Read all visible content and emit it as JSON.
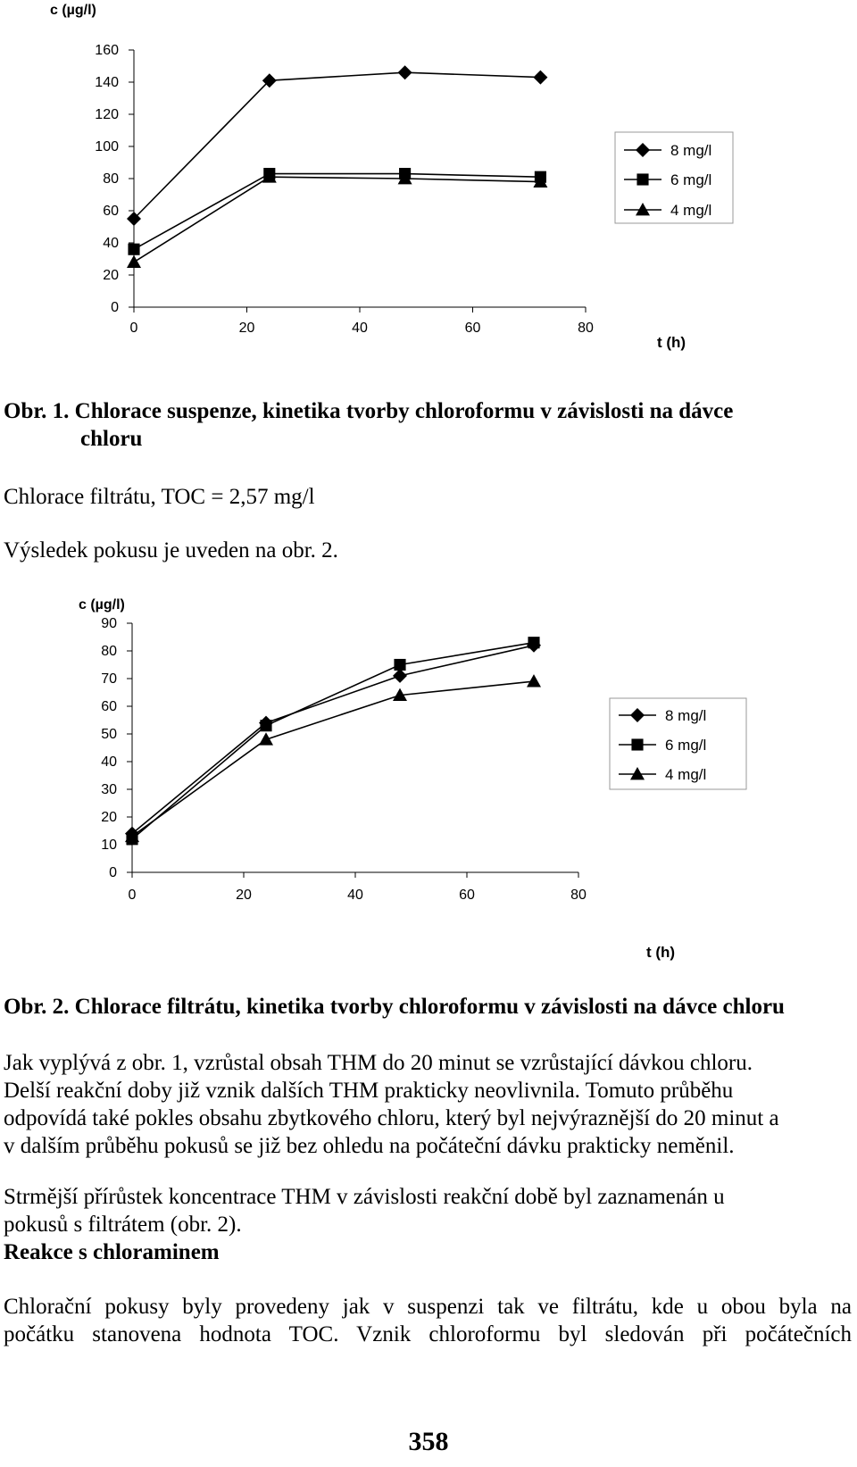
{
  "chart_data": [
    {
      "type": "line",
      "title": "",
      "ylabel": "c (µg/l)",
      "xlabel": "t (h)",
      "xlim": [
        0,
        80
      ],
      "ylim": [
        0,
        160
      ],
      "xticks": [
        0,
        20,
        40,
        60,
        80
      ],
      "yticks": [
        0,
        20,
        40,
        60,
        80,
        100,
        120,
        140,
        160
      ],
      "legend_position": "right",
      "series": [
        {
          "name": "8 mg/l",
          "marker": "diamond",
          "x": [
            0,
            24,
            48,
            72
          ],
          "y": [
            55,
            141,
            146,
            143
          ]
        },
        {
          "name": "6 mg/l",
          "marker": "square",
          "x": [
            0,
            24,
            48,
            72
          ],
          "y": [
            36,
            83,
            83,
            81
          ]
        },
        {
          "name": "4 mg/l",
          "marker": "triangle",
          "x": [
            0,
            24,
            48,
            72
          ],
          "y": [
            28,
            81,
            80,
            78
          ]
        }
      ]
    },
    {
      "type": "line",
      "title": "",
      "ylabel": "c (µg/l)",
      "xlabel": "t (h)",
      "xlim": [
        0,
        80
      ],
      "ylim": [
        0,
        90
      ],
      "xticks": [
        0,
        20,
        40,
        60,
        80
      ],
      "yticks": [
        0,
        10,
        20,
        30,
        40,
        50,
        60,
        70,
        80,
        90
      ],
      "legend_position": "right",
      "series": [
        {
          "name": "8 mg/l",
          "marker": "diamond",
          "x": [
            0,
            24,
            48,
            72
          ],
          "y": [
            14,
            54,
            71,
            82
          ]
        },
        {
          "name": "6 mg/l",
          "marker": "square",
          "x": [
            0,
            24,
            48,
            72
          ],
          "y": [
            12,
            53,
            75,
            83
          ]
        },
        {
          "name": "4 mg/l",
          "marker": "triangle",
          "x": [
            0,
            24,
            48,
            72
          ],
          "y": [
            13,
            48,
            64,
            69
          ]
        }
      ]
    }
  ],
  "text": {
    "caption1_line1": "Obr. 1. Chlorace suspenze, kinetika tvorby chloroformu v závislosti na dávce",
    "caption1_line2": "chloru",
    "heading_filtrate": "Chlorace filtrátu, TOC = 2,57 mg/l",
    "result_note": "Výsledek pokusu je uveden na obr. 2.",
    "caption2": "Obr. 2. Chlorace filtrátu, kinetika tvorby chloroformu v závislosti na dávce chloru",
    "para1_lines": [
      "Jak vyplývá z obr. 1, vzrůstal obsah THM do 20 minut se vzrůstající dávkou chloru.",
      "Delší reakční doby již vznik dalších THM prakticky neovlivnila. Tomuto průběhu",
      "odpovídá také pokles obsahu zbytkového chloru, který byl nejvýraznější do 20 minut a",
      "v dalším průběhu pokusů se již bez ohledu na počáteční dávku prakticky neměnil."
    ],
    "para2_lines": [
      "Strmější přírůstek koncentrace THM v závislosti reakční době byl zaznamenán u",
      "pokusů s filtrátem (obr. 2)."
    ],
    "section_heading": "Reakce s chloraminem",
    "para3_lines": [
      "Chlorační pokusy byly provedeny jak v suspenzi tak ve filtrátu, kde u obou byla na",
      "počátku stanovena hodnota TOC. Vznik chloroformu byl sledován při počátečních"
    ],
    "page_number": "358"
  }
}
